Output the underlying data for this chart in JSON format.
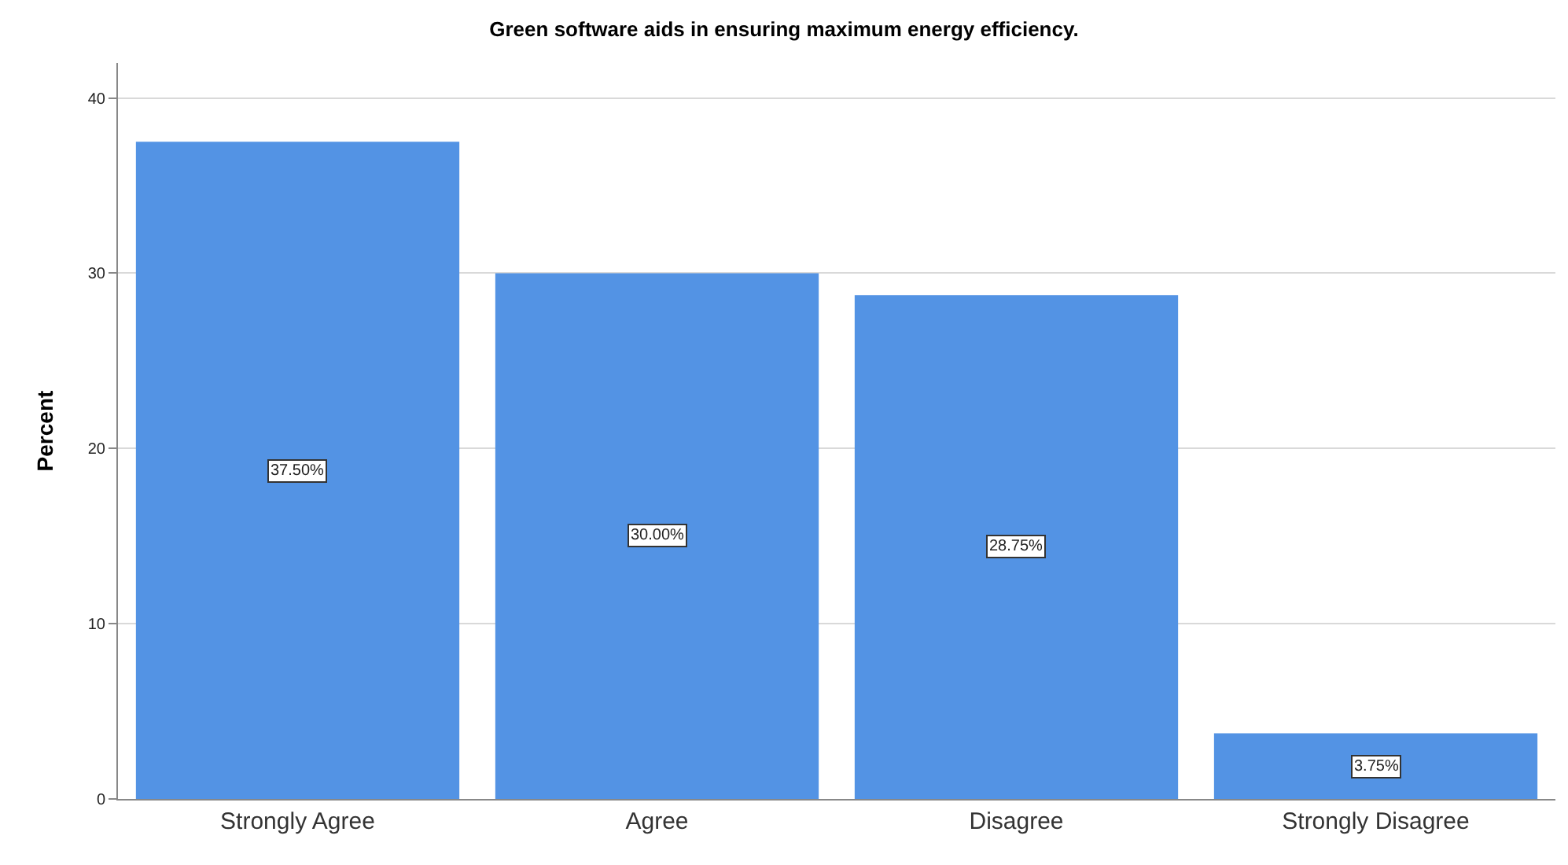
{
  "chart_data": {
    "type": "bar",
    "title": "Green software aids in ensuring maximum energy efficiency.",
    "ylabel": "Percent",
    "categories": [
      "Strongly Agree",
      "Agree",
      "Disagree",
      "Strongly Disagree"
    ],
    "values": [
      37.5,
      30,
      28.75,
      3.75
    ],
    "value_labels": [
      "37.50%",
      "30.00%",
      "28.75%",
      "3.75%"
    ],
    "color": "#5393e4",
    "ylim": [
      0,
      42
    ],
    "yticks": [
      0,
      10,
      20,
      30,
      40
    ],
    "grid": "y",
    "legend": false
  }
}
